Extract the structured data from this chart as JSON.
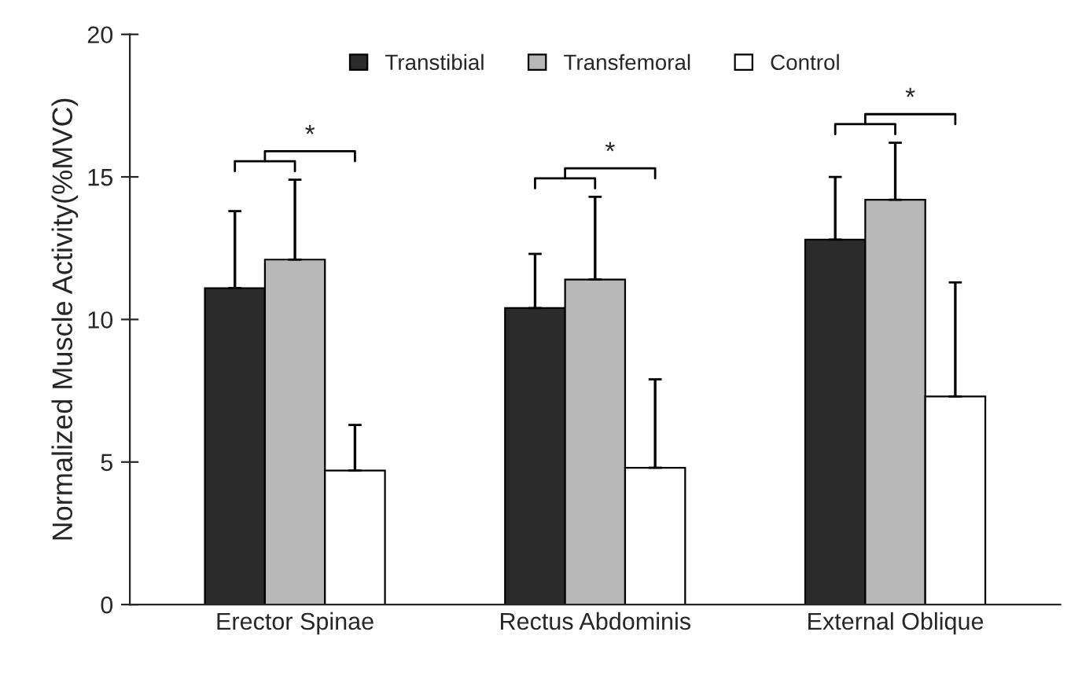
{
  "chart_data": {
    "type": "bar",
    "ylabel": "Normalized Muscle Activity(%MVC)",
    "categories": [
      "Erector Spinae",
      "Rectus Abdominis",
      "External Oblique"
    ],
    "series": [
      {
        "name": "Transtibial",
        "color": "#2b2b2b",
        "values": [
          11.1,
          10.4,
          12.8
        ],
        "errors": [
          [
            11.1,
            13.8
          ],
          [
            10.4,
            12.3
          ],
          [
            12.8,
            15.0
          ]
        ]
      },
      {
        "name": "Transfemoral",
        "color": "#b8b8b8",
        "values": [
          12.1,
          11.4,
          14.2
        ],
        "errors": [
          [
            12.1,
            14.9
          ],
          [
            11.4,
            14.3
          ],
          [
            14.2,
            16.2
          ]
        ]
      },
      {
        "name": "Control",
        "color": "#ffffff",
        "values": [
          4.7,
          4.8,
          7.3
        ],
        "errors": [
          [
            4.7,
            6.3
          ],
          [
            4.8,
            7.9
          ],
          [
            7.3,
            11.3
          ]
        ]
      }
    ],
    "annotations": [
      "*",
      "*",
      "*"
    ],
    "ylim": [
      0,
      20
    ],
    "yticks": [
      0,
      5,
      10,
      15,
      20
    ],
    "grid": false,
    "legend": "top"
  }
}
